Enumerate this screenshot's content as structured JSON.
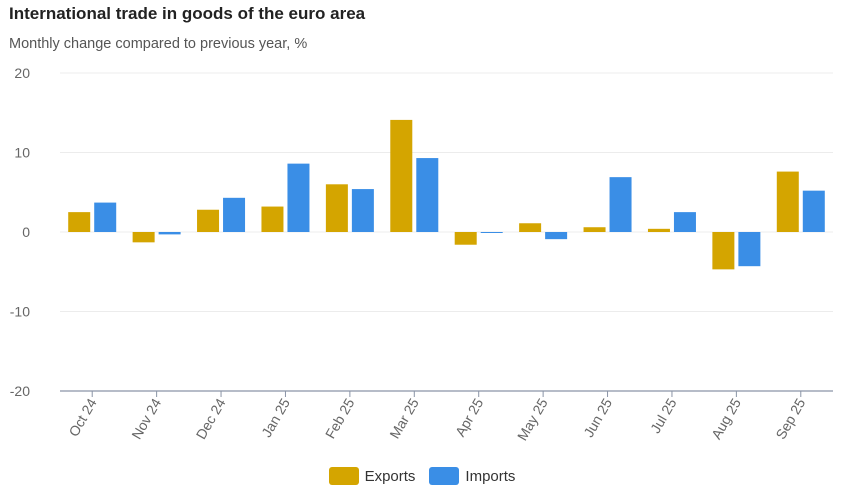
{
  "chart_data": {
    "type": "bar",
    "title": "International trade in goods of the euro area",
    "subtitle": "Monthly change compared to previous year, %",
    "categories": [
      "Oct 24",
      "Nov 24",
      "Dec 24",
      "Jan 25",
      "Feb 25",
      "Mar 25",
      "Apr 25",
      "May 25",
      "Jun 25",
      "Jul 25",
      "Aug 25",
      "Sep 25"
    ],
    "series": [
      {
        "name": "Exports",
        "color": "#D4A500",
        "values": [
          2.5,
          -1.3,
          2.8,
          3.2,
          6.0,
          14.1,
          -1.6,
          1.1,
          0.6,
          0.4,
          -4.7,
          7.6
        ]
      },
      {
        "name": "Imports",
        "color": "#3A8EE6",
        "values": [
          3.7,
          -0.3,
          4.3,
          8.6,
          5.4,
          9.3,
          -0.1,
          -0.9,
          6.9,
          2.5,
          -4.3,
          5.2
        ]
      }
    ],
    "ylim": [
      -20,
      20
    ],
    "yticks": [
      20,
      10,
      0,
      -10,
      -20
    ],
    "grid": true,
    "legend_position": "bottom-center"
  }
}
